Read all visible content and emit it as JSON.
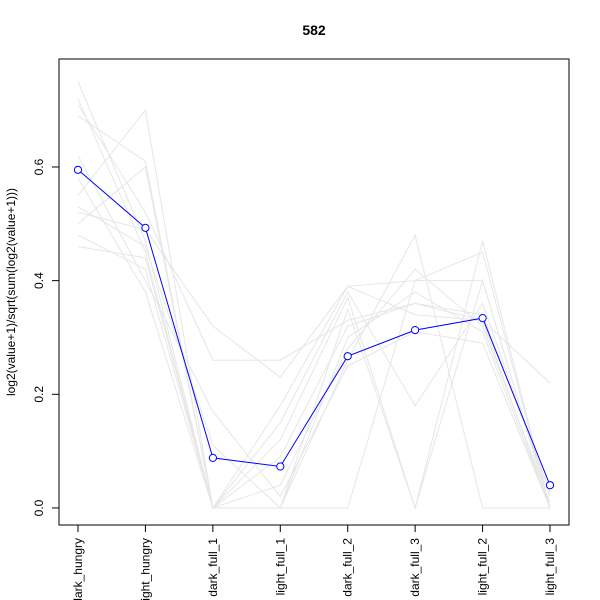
{
  "chart_data": {
    "type": "line",
    "title": "582",
    "xlabel": "",
    "ylabel": "log2(value+1)/sqrt(sum(log2(value+1)))",
    "categories": [
      "dark_hungry",
      "light_hungry",
      "dark_full_1",
      "light_full_1",
      "dark_full_2",
      "dark_full_3",
      "light_full_2",
      "light_full_3"
    ],
    "ylim": [
      -0.03,
      0.79
    ],
    "yticks": [
      0.0,
      0.2,
      0.4,
      0.6
    ],
    "ytick_labels": [
      "0.0",
      "0.2",
      "0.4",
      "0.6"
    ],
    "grid": false,
    "legend": "none",
    "highlight_color": "#0000ff",
    "background_color": "#e6e6e6",
    "highlight": {
      "values": [
        0.595,
        0.493,
        0.088,
        0.073,
        0.267,
        0.313,
        0.334,
        0.04
      ]
    },
    "background_series": [
      {
        "values": [
          0.72,
          0.45,
          0.0,
          0.18,
          0.39,
          0.4,
          0.4,
          0.0
        ]
      },
      {
        "values": [
          0.71,
          0.52,
          0.26,
          0.26,
          0.33,
          0.36,
          0.33,
          0.22
        ]
      },
      {
        "values": [
          0.69,
          0.61,
          0.0,
          0.12,
          0.37,
          0.0,
          0.47,
          0.0
        ]
      },
      {
        "values": [
          0.55,
          0.7,
          0.0,
          0.0,
          0.26,
          0.48,
          0.0,
          0.0
        ]
      },
      {
        "values": [
          0.46,
          0.44,
          0.0,
          0.0,
          0.0,
          0.4,
          0.45,
          0.0
        ]
      },
      {
        "values": [
          0.52,
          0.49,
          0.32,
          0.23,
          0.39,
          0.34,
          0.33,
          0.0
        ]
      },
      {
        "values": [
          0.5,
          0.6,
          0.0,
          0.15,
          0.38,
          0.18,
          0.36,
          0.02
        ]
      },
      {
        "values": [
          0.75,
          0.47,
          0.0,
          0.0,
          0.3,
          0.38,
          0.31,
          0.0
        ]
      },
      {
        "values": [
          0.62,
          0.4,
          0.17,
          0.02,
          0.25,
          0.31,
          0.29,
          0.0
        ]
      },
      {
        "values": [
          0.58,
          0.38,
          0.0,
          0.04,
          0.28,
          0.42,
          0.32,
          0.01
        ]
      },
      {
        "values": [
          0.53,
          0.46,
          0.11,
          0.0,
          0.35,
          0.0,
          0.4,
          0.0
        ]
      },
      {
        "values": [
          0.48,
          0.42,
          0.0,
          0.09,
          0.32,
          0.36,
          0.34,
          0.03
        ]
      }
    ]
  }
}
